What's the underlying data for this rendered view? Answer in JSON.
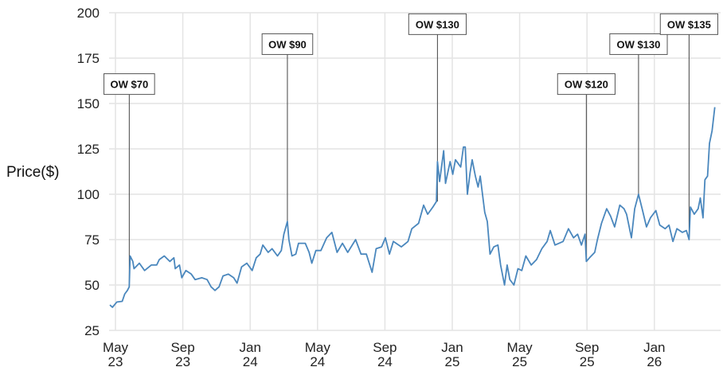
{
  "chart_data": {
    "type": "line",
    "title": "",
    "xlabel": "",
    "ylabel": "Price($)",
    "x_unit": "months since May 2023",
    "xlim": [
      -0.35,
      36.7
    ],
    "ylim": [
      25,
      200
    ],
    "grid": true,
    "y_ticks": [
      25,
      50,
      75,
      100,
      125,
      150,
      175,
      200
    ],
    "x_ticks": [
      {
        "x": 0,
        "label": [
          "May",
          "23"
        ]
      },
      {
        "x": 4,
        "label": [
          "Sep",
          "23"
        ]
      },
      {
        "x": 8,
        "label": [
          "Jan",
          "24"
        ]
      },
      {
        "x": 12,
        "label": [
          "May",
          "24"
        ]
      },
      {
        "x": 16,
        "label": [
          "Sep",
          "24"
        ]
      },
      {
        "x": 20,
        "label": [
          "Jan",
          "25"
        ]
      },
      {
        "x": 24,
        "label": [
          "May",
          "25"
        ]
      },
      {
        "x": 28,
        "label": [
          "Sep",
          "25"
        ]
      },
      {
        "x": 32,
        "label": [
          "Jan",
          "26"
        ]
      }
    ],
    "series": [
      {
        "name": "Price",
        "color": "#4a87bd",
        "x": [
          -0.33,
          -0.18,
          0.08,
          0.4,
          0.55,
          0.71,
          0.82,
          0.87,
          1.03,
          1.1,
          1.42,
          1.73,
          2.13,
          2.45,
          2.6,
          2.9,
          3.23,
          3.47,
          3.55,
          3.8,
          3.94,
          4.18,
          4.5,
          4.73,
          5.13,
          5.44,
          5.68,
          5.91,
          6.15,
          6.39,
          6.7,
          7.02,
          7.22,
          7.49,
          7.8,
          8.12,
          8.36,
          8.59,
          8.75,
          9.07,
          9.3,
          9.62,
          9.85,
          10.0,
          10.21,
          10.3,
          10.48,
          10.71,
          10.87,
          11.27,
          11.5,
          11.66,
          11.9,
          12.2,
          12.54,
          12.85,
          13.16,
          13.48,
          13.79,
          14.26,
          14.58,
          14.9,
          15.24,
          15.48,
          15.8,
          16.03,
          16.27,
          16.5,
          16.98,
          17.37,
          17.6,
          18.0,
          18.3,
          18.54,
          18.85,
          19.06,
          19.12,
          19.25,
          19.49,
          19.6,
          19.87,
          20.03,
          20.19,
          20.5,
          20.66,
          20.77,
          20.9,
          21.06,
          21.18,
          21.37,
          21.53,
          21.66,
          21.93,
          22.08,
          22.24,
          22.47,
          22.71,
          22.87,
          23.1,
          23.26,
          23.42,
          23.66,
          23.9,
          24.13,
          24.37,
          24.69,
          25.0,
          25.32,
          25.63,
          25.82,
          26.1,
          26.58,
          26.9,
          27.2,
          27.44,
          27.67,
          27.88,
          27.96,
          28.15,
          28.46,
          28.62,
          28.86,
          29.17,
          29.4,
          29.64,
          29.95,
          30.2,
          30.35,
          30.64,
          30.83,
          31.06,
          31.3,
          31.53,
          31.77,
          32.09,
          32.32,
          32.64,
          32.87,
          33.1,
          33.34,
          33.66,
          33.9,
          34.06,
          34.14,
          34.37,
          34.6,
          34.73,
          34.89,
          35.0,
          35.16,
          35.27,
          35.43,
          35.59
        ],
        "y": [
          39,
          37.7,
          40.6,
          41,
          45,
          47,
          49,
          66,
          63,
          59,
          62,
          58,
          61,
          61,
          64,
          66,
          63,
          65,
          59,
          61,
          54,
          58,
          56,
          53,
          54,
          53,
          49,
          47,
          49,
          55,
          56,
          54,
          51,
          60,
          62,
          58,
          65,
          67,
          72,
          68,
          70,
          66,
          69,
          78,
          85,
          75,
          66,
          67,
          73,
          73,
          68,
          62,
          69,
          69,
          76,
          79,
          68,
          73,
          68,
          75,
          67,
          67,
          57,
          70,
          71,
          76,
          67,
          74,
          71,
          74,
          81,
          84,
          94,
          89,
          93,
          96,
          118,
          107,
          124,
          106,
          118,
          111,
          119,
          115,
          126,
          126,
          100,
          112,
          119,
          110,
          104,
          110,
          90,
          85,
          67,
          71,
          72,
          61,
          50,
          61,
          53,
          50,
          59,
          58,
          66,
          61,
          64,
          70,
          74,
          80,
          72,
          74,
          81,
          76,
          78,
          72,
          78,
          63,
          65,
          68,
          75,
          84,
          92,
          88,
          82,
          94,
          92,
          89,
          76,
          92,
          100,
          91,
          82,
          87,
          91,
          83,
          81,
          83,
          74,
          81,
          79,
          80,
          75,
          93,
          89,
          92,
          98,
          87,
          108,
          110,
          128,
          135,
          148
        ]
      }
    ],
    "annotations": [
      {
        "label": "OW $70",
        "x": 0.82,
        "y": 49,
        "label_price": 155
      },
      {
        "label": "OW $90",
        "x": 10.21,
        "y": 85,
        "label_price": 177
      },
      {
        "label": "OW $130",
        "x": 19.12,
        "y": 96,
        "label_price": 188
      },
      {
        "label": "OW $120",
        "x": 27.96,
        "y": 63,
        "label_price": 155
      },
      {
        "label": "OW $130",
        "x": 31.06,
        "y": 100,
        "label_price": 177
      },
      {
        "label": "OW $135",
        "x": 34.06,
        "y": 75,
        "label_price": 188
      }
    ]
  }
}
